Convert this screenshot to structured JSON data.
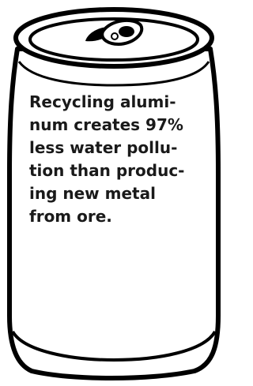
{
  "fact": {
    "lines": [
      "Recycling alumi-",
      "num creates 97%",
      "less water pollu-",
      "tion than produc-",
      "ing new metal",
      "from ore."
    ]
  }
}
